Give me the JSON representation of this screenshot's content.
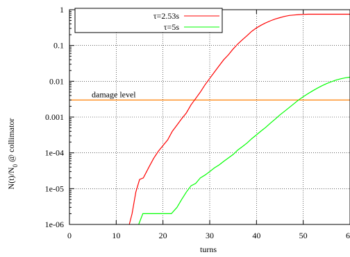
{
  "chart_data": {
    "type": "line",
    "xlabel": "turns",
    "ylabel_main": "N(t)/N",
    "ylabel_sub": "0",
    "ylabel_rest": " @ collimator",
    "ylabel": "N(t)/N0 @ collimator",
    "xlim": [
      0,
      60
    ],
    "ylim": [
      1e-06,
      1
    ],
    "yscale": "log",
    "grid": true,
    "legend_position": "top-left",
    "x_ticks": [
      "0",
      "10",
      "20",
      "30",
      "40",
      "50",
      "60"
    ],
    "y_ticks": [
      "1",
      "0.1",
      "0.01",
      "0.001",
      "1e-04",
      "1e-05",
      "1e-06"
    ],
    "series": [
      {
        "name": "τ=2.53s",
        "color": "#ff0000",
        "points": [
          [
            12.8,
            1e-06
          ],
          [
            13.4,
            2e-06
          ],
          [
            14.2,
            8e-06
          ],
          [
            15.0,
            1.8e-05
          ],
          [
            15.8,
            2e-05
          ],
          [
            17,
            4e-05
          ],
          [
            18,
            7e-05
          ],
          [
            19,
            0.00011
          ],
          [
            20,
            0.00016
          ],
          [
            21,
            0.00023
          ],
          [
            22,
            0.0004
          ],
          [
            23,
            0.0006
          ],
          [
            24,
            0.0009
          ],
          [
            25,
            0.0013
          ],
          [
            26,
            0.0022
          ],
          [
            27,
            0.0033
          ],
          [
            28,
            0.005
          ],
          [
            29,
            0.008
          ],
          [
            30,
            0.012
          ],
          [
            31,
            0.018
          ],
          [
            32,
            0.027
          ],
          [
            33,
            0.04
          ],
          [
            34,
            0.055
          ],
          [
            35,
            0.08
          ],
          [
            36,
            0.11
          ],
          [
            37,
            0.145
          ],
          [
            38,
            0.19
          ],
          [
            39,
            0.25
          ],
          [
            40,
            0.31
          ],
          [
            41,
            0.37
          ],
          [
            42,
            0.43
          ],
          [
            43,
            0.49
          ],
          [
            44,
            0.55
          ],
          [
            45,
            0.6
          ],
          [
            46,
            0.65
          ],
          [
            47,
            0.69
          ],
          [
            48,
            0.71
          ],
          [
            49,
            0.73
          ],
          [
            50,
            0.74
          ],
          [
            51,
            0.75
          ],
          [
            53,
            0.75
          ],
          [
            56,
            0.75
          ],
          [
            60,
            0.75
          ]
        ]
      },
      {
        "name": "τ=5s",
        "color": "#00ff00",
        "points": [
          [
            14.8,
            1e-06
          ],
          [
            15.7,
            2e-06
          ],
          [
            17,
            2e-06
          ],
          [
            19,
            2e-06
          ],
          [
            21,
            2e-06
          ],
          [
            21.8,
            2e-06
          ],
          [
            23,
            3e-06
          ],
          [
            24,
            5e-06
          ],
          [
            25,
            8e-06
          ],
          [
            26,
            1.2e-05
          ],
          [
            27,
            1.4e-05
          ],
          [
            28,
            2e-05
          ],
          [
            29,
            2.4e-05
          ],
          [
            30,
            3e-05
          ],
          [
            31,
            3.8e-05
          ],
          [
            32,
            4.6e-05
          ],
          [
            33,
            5.8e-05
          ],
          [
            34,
            7.2e-05
          ],
          [
            35,
            9e-05
          ],
          [
            36,
            0.00012
          ],
          [
            37,
            0.00015
          ],
          [
            38,
            0.00019
          ],
          [
            39,
            0.00025
          ],
          [
            40,
            0.00032
          ],
          [
            41,
            0.00041
          ],
          [
            42,
            0.00052
          ],
          [
            43,
            0.00068
          ],
          [
            44,
            0.00088
          ],
          [
            45,
            0.00115
          ],
          [
            46,
            0.00145
          ],
          [
            47,
            0.00185
          ],
          [
            48,
            0.00235
          ],
          [
            49,
            0.003
          ],
          [
            50,
            0.0037
          ],
          [
            51,
            0.0045
          ],
          [
            52,
            0.0054
          ],
          [
            53,
            0.0064
          ],
          [
            54,
            0.0075
          ],
          [
            55,
            0.0086
          ],
          [
            56,
            0.0097
          ],
          [
            57,
            0.0108
          ],
          [
            58,
            0.0117
          ],
          [
            59,
            0.0125
          ],
          [
            60,
            0.013
          ]
        ]
      }
    ],
    "reference_lines": [
      {
        "label": "damage level",
        "y": 0.003,
        "color": "#ff7f00"
      }
    ]
  }
}
